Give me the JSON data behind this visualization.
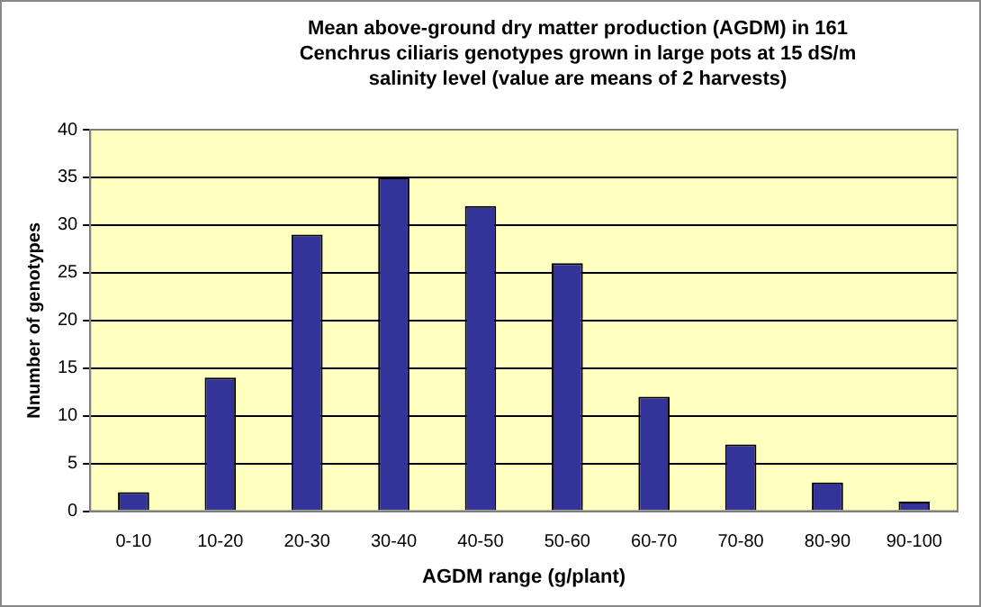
{
  "chart_data": {
    "type": "bar",
    "title": "Mean above-ground dry matter production (AGDM) in 161 Cenchrus ciliaris genotypes grown in large pots at 15 dS/m salinity level (value are means of 2 harvests)",
    "xlabel": "AGDM range (g/plant)",
    "ylabel": "Nnumber of genotypes",
    "categories": [
      "0-10",
      "10-20",
      "20-30",
      "30-40",
      "40-50",
      "50-60",
      "60-70",
      "70-80",
      "80-90",
      "90-100"
    ],
    "values": [
      2,
      14,
      29,
      35,
      32,
      26,
      12,
      7,
      3,
      1
    ],
    "color": "#333399",
    "ylim": [
      0,
      40
    ],
    "yticks": [
      0,
      5,
      10,
      15,
      20,
      25,
      30,
      35,
      40
    ],
    "grid": "y"
  }
}
